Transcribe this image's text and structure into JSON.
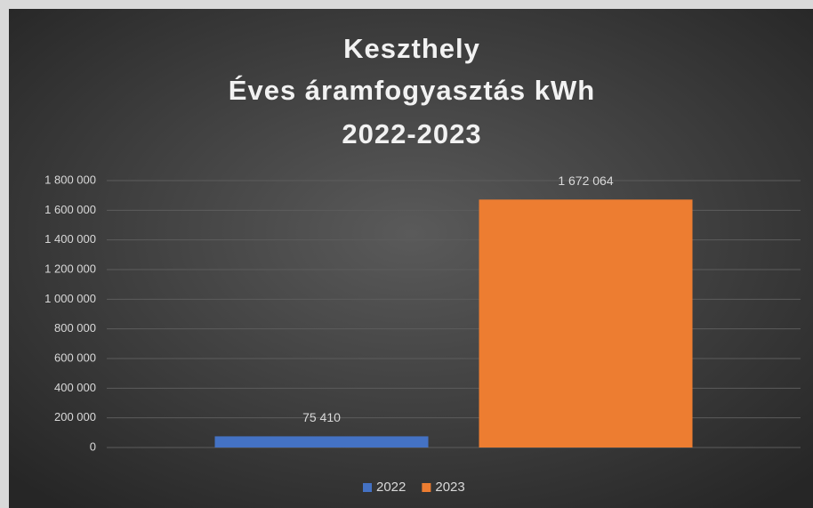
{
  "chart_data": {
    "type": "bar",
    "title": [
      "Keszthely",
      "Éves áramfogyasztás kWh",
      "2022-2023"
    ],
    "categories": [
      null
    ],
    "series": [
      {
        "name": "2022",
        "color": "#4472c4",
        "values": [
          75410
        ],
        "value_labels": [
          "75 410"
        ]
      },
      {
        "name": "2023",
        "color": "#ed7d31",
        "values": [
          1672064
        ],
        "value_labels": [
          "1 672 064"
        ]
      }
    ],
    "ylim": [
      0,
      1800000
    ],
    "yticks": [
      0,
      {
        "value": 200000,
        "label": "200 000"
      },
      {
        "value": 400000,
        "label": "400 000"
      },
      {
        "value": 600000,
        "label": "600 000"
      },
      {
        "value": 800000,
        "label": "800 000"
      },
      {
        "value": 1000000,
        "label": "1 000 000"
      },
      {
        "value": 1200000,
        "label": "1 200 000"
      },
      {
        "value": 1400000,
        "label": "1 400 000"
      },
      {
        "value": 1600000,
        "label": "1 600 000"
      },
      {
        "value": 1800000,
        "label": "1 800 000"
      }
    ],
    "grid": true,
    "legend": "bottom"
  }
}
